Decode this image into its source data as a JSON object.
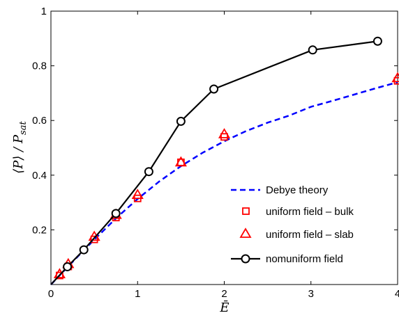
{
  "chart_data": {
    "type": "line",
    "xlabel": "Ē",
    "ylabel": "⟨P⟩ / P_sat",
    "ylabel_main": "⟨P⟩ / P",
    "ylabel_sub": "sat",
    "xlim": [
      0,
      4
    ],
    "ylim": [
      0,
      1
    ],
    "xticks": [
      "0",
      "1",
      "2",
      "3",
      "4"
    ],
    "yticks": [
      "0.2",
      "0.4",
      "0.6",
      "0.8",
      "1"
    ],
    "grid": false,
    "legend_position": "bottom-right",
    "series": [
      {
        "name": "Debye theory",
        "style": "dashed",
        "color": "#0000ff",
        "x": [
          0,
          0.25,
          0.5,
          0.75,
          1.0,
          1.25,
          1.5,
          1.75,
          2.0,
          2.25,
          2.5,
          2.75,
          3.0,
          3.25,
          3.5,
          3.75,
          4.0
        ],
        "y": [
          0,
          0.083,
          0.164,
          0.242,
          0.313,
          0.377,
          0.433,
          0.482,
          0.524,
          0.561,
          0.592,
          0.618,
          0.65,
          0.672,
          0.695,
          0.718,
          0.74
        ]
      },
      {
        "name": "uniform field – bulk",
        "marker": "square",
        "color": "#ff0000",
        "x": [
          0.1,
          0.2,
          0.5,
          0.75,
          1.0,
          1.5,
          2.0,
          4.0
        ],
        "y": [
          0.033,
          0.066,
          0.165,
          0.245,
          0.315,
          0.447,
          0.54,
          0.745
        ]
      },
      {
        "name": "uniform field – slab",
        "marker": "triangle",
        "color": "#ff0000",
        "x": [
          0.1,
          0.2,
          0.5,
          0.75,
          1.0,
          1.5,
          2.0,
          4.0
        ],
        "y": [
          0.038,
          0.075,
          0.175,
          0.255,
          0.328,
          0.447,
          0.55,
          0.755
        ]
      },
      {
        "name": "nomuniform field",
        "marker": "circle",
        "style": "solid",
        "color": "#000000",
        "x": [
          0,
          0.19,
          0.38,
          0.75,
          1.13,
          1.5,
          1.88,
          3.02,
          3.77
        ],
        "y": [
          0,
          0.065,
          0.127,
          0.26,
          0.413,
          0.597,
          0.715,
          0.858,
          0.89
        ]
      }
    ]
  }
}
